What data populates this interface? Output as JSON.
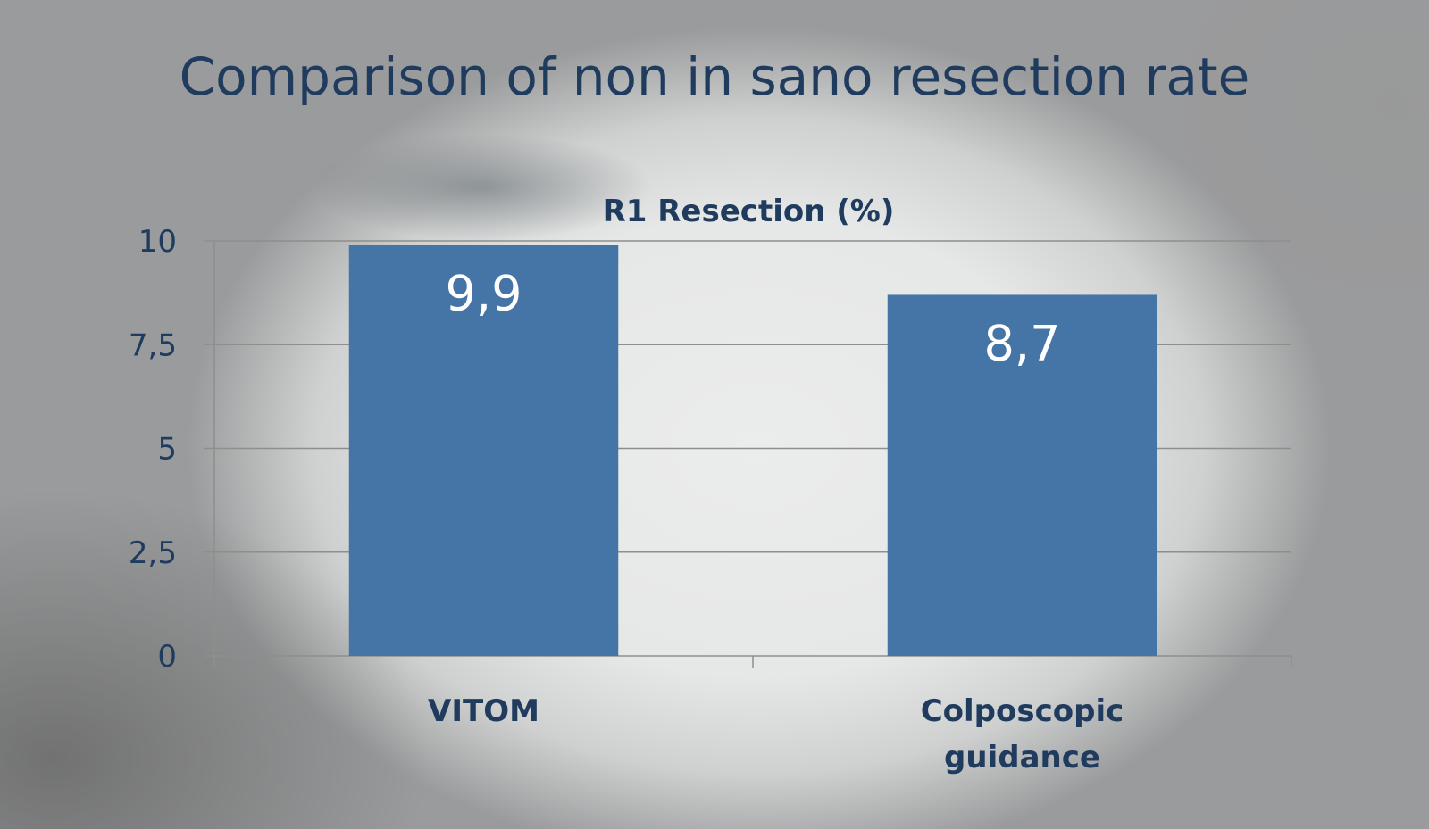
{
  "slide": {
    "title": "Comparison of non in sano resection rate"
  },
  "chart_data": {
    "type": "bar",
    "title": "R1 Resection (%)",
    "categories": [
      [
        "VITOM"
      ],
      [
        "Colposcopic",
        "guidance"
      ]
    ],
    "series": [
      {
        "values": [
          9.9,
          8.7
        ],
        "data_labels": [
          "9,9",
          "8,7"
        ]
      }
    ],
    "yticks": [
      0,
      2.5,
      5,
      7.5,
      10
    ],
    "ytick_labels": [
      "0",
      "2,5",
      "5",
      "7,5",
      "10"
    ],
    "ylim": [
      0,
      10
    ],
    "grid": true,
    "legend": "none",
    "colors": {
      "bar": "#4574a7",
      "text": "#1f3b5e",
      "grid": "#8e8e8e"
    }
  }
}
